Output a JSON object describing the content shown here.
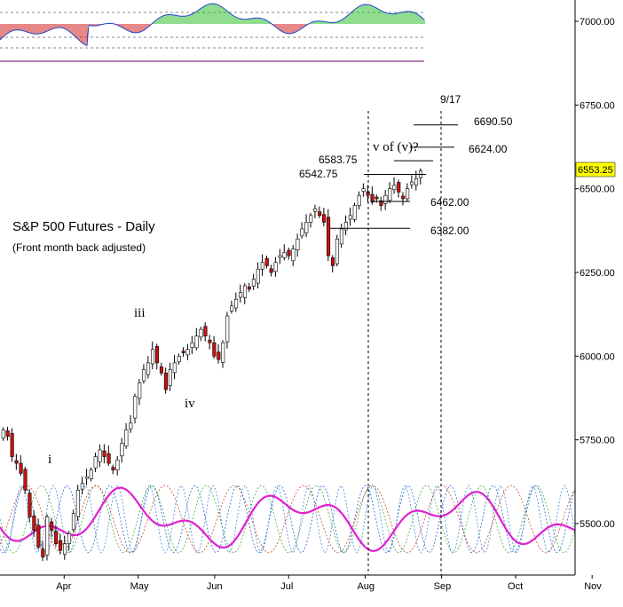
{
  "chart_data": {
    "type": "candlestick",
    "title": "S&P 500 Futures - Daily",
    "subtitle": "(Front month back adjusted)",
    "price_axis": {
      "ticks": [
        "7000.00",
        "6750.00",
        "6500.00",
        "6250.00",
        "6000.00",
        "5750.00",
        "5500.00"
      ],
      "tick_values": [
        7000,
        6750,
        6500,
        6250,
        6000,
        5750,
        5500
      ],
      "range": [
        5375,
        7080
      ]
    },
    "last_price": {
      "label": "6553.25",
      "value": 6553.25,
      "color": "#ffff00"
    },
    "time_axis": {
      "labels": [
        "Apr",
        "May",
        "Jun",
        "Jul",
        "Aug",
        "Sep",
        "Oct",
        "Nov"
      ]
    },
    "wave_labels": [
      {
        "text": "i",
        "price": 5700,
        "date": "2025-04-10"
      },
      {
        "text": "iii",
        "price": 6120,
        "date": "2025-05-17"
      },
      {
        "text": "iv",
        "price": 5860,
        "date": "2025-05-25"
      },
      {
        "text": "v of (v)?",
        "price": 6620,
        "date": "2025-09-02"
      }
    ],
    "levels": [
      {
        "label": "6690.50",
        "value": 6690.5
      },
      {
        "label": "6624.00",
        "value": 6624.0
      },
      {
        "label": "6583.75",
        "value": 6583.75
      },
      {
        "label": "6542.75",
        "value": 6542.75
      },
      {
        "label": "6462.00",
        "value": 6462.0
      },
      {
        "label": "6382.00",
        "value": 6382.0
      }
    ],
    "date_marker": {
      "label": "9/17",
      "date": "2025-09-17"
    },
    "vertical_markers": [
      "2025-08-20",
      "2025-09-17"
    ],
    "closes": [
      5780,
      5760,
      5700,
      5680,
      5650,
      5600,
      5520,
      5480,
      5430,
      5400,
      5520,
      5480,
      5440,
      5420,
      5440,
      5470,
      5530,
      5600,
      5620,
      5640,
      5660,
      5700,
      5720,
      5700,
      5680,
      5660,
      5690,
      5740,
      5780,
      5800,
      5880,
      5920,
      5960,
      5980,
      6020,
      5980,
      5950,
      5900,
      5960,
      5980,
      6000,
      6010,
      6020,
      6040,
      6060,
      6080,
      6060,
      6040,
      6000,
      5990,
      6040,
      6120,
      6150,
      6170,
      6190,
      6210,
      6200,
      6230,
      6260,
      6280,
      6270,
      6250,
      6280,
      6300,
      6310,
      6300,
      6320,
      6350,
      6380,
      6400,
      6420,
      6440,
      6420,
      6400,
      6300,
      6270,
      6350,
      6380,
      6400,
      6420,
      6450,
      6480,
      6500,
      6480,
      6460,
      6470,
      6450,
      6480,
      6500,
      6510,
      6490,
      6470,
      6500,
      6520,
      6530,
      6553
    ]
  },
  "colors": {
    "bull": "#ffffff",
    "bear": "#cc1111",
    "cycle_main": "#e020d0",
    "histogram_up": "#22bb22",
    "histogram_down": "#cc1111",
    "oscillator_line": "#2244cc"
  }
}
